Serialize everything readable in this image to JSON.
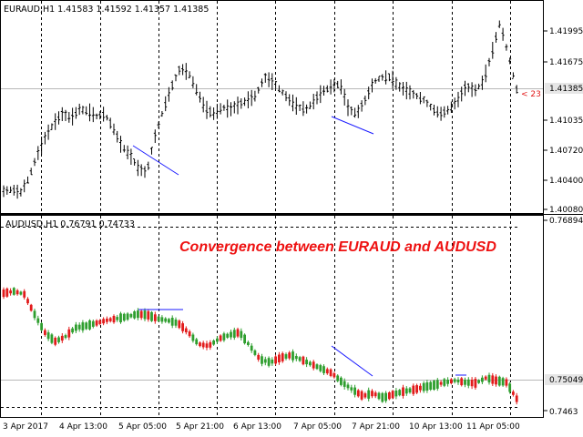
{
  "main_chart": {
    "header": "EURAUD,H1  1.41583 1.41592 1.41357 1.41385",
    "y_axis_labels": [
      "1.41995",
      "1.41675",
      "1.41035",
      "1.40720",
      "1.40400",
      "1.40080"
    ],
    "current_price": "1.41385",
    "alert_marker": "< 23",
    "colors": {
      "candle": "#000000",
      "divergence_line": "#1a1aff",
      "grid": "#000000"
    }
  },
  "indicator_chart": {
    "header": "AUDUSD,H1 0.76791 0.74733",
    "y_axis_labels": [
      "0.76894",
      "0.7463"
    ],
    "current_price": "0.75049",
    "annotation": "Convergence between EURAUD and AUDUSD",
    "colors": {
      "bull": "#2e9e2e",
      "bear": "#e21b1b",
      "annotation": "#ee1111",
      "divergence_line": "#1a1aff"
    }
  },
  "time_axis": {
    "labels": [
      "3 Apr 2017",
      "4 Apr 13:00",
      "5 Apr 05:00",
      "5 Apr 21:00",
      "6 Apr 13:00",
      "7 Apr 05:00",
      "7 Apr 21:00",
      "10 Apr 13:00",
      "11 Apr 05:00"
    ]
  }
}
